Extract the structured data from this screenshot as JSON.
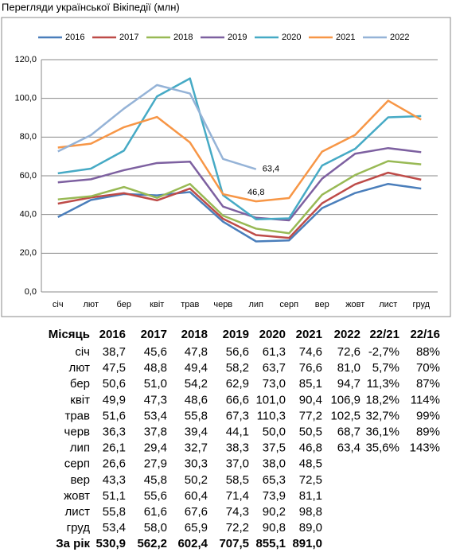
{
  "chart_data": {
    "type": "line",
    "title": "Перегляди української Вікіпедії (млн)",
    "categories": [
      "січ",
      "лют",
      "бер",
      "квіт",
      "трав",
      "черв",
      "лип",
      "серп",
      "вер",
      "жовт",
      "лист",
      "груд"
    ],
    "series": [
      {
        "name": "2016",
        "color": "#4a7ebb",
        "values": [
          38.7,
          47.5,
          50.6,
          49.9,
          51.6,
          36.3,
          26.1,
          26.6,
          43.3,
          51.1,
          55.8,
          53.4
        ]
      },
      {
        "name": "2017",
        "color": "#be4b48",
        "values": [
          45.6,
          48.8,
          51.0,
          47.3,
          53.4,
          37.8,
          29.4,
          27.9,
          45.8,
          55.6,
          61.6,
          58.0
        ]
      },
      {
        "name": "2018",
        "color": "#98b954",
        "values": [
          47.8,
          49.4,
          54.2,
          48.6,
          55.8,
          39.4,
          32.7,
          30.3,
          50.2,
          60.4,
          67.6,
          65.9
        ]
      },
      {
        "name": "2019",
        "color": "#7d60a0",
        "values": [
          56.6,
          58.2,
          62.9,
          66.6,
          67.3,
          44.1,
          38.3,
          37.0,
          58.5,
          71.4,
          74.3,
          72.2
        ]
      },
      {
        "name": "2020",
        "color": "#46aac5",
        "values": [
          61.3,
          63.7,
          73.0,
          101.0,
          110.3,
          50.0,
          37.5,
          38.0,
          65.3,
          73.9,
          90.2,
          90.8
        ]
      },
      {
        "name": "2021",
        "color": "#f79646",
        "values": [
          74.6,
          76.6,
          85.1,
          90.4,
          77.2,
          50.5,
          46.8,
          48.5,
          72.5,
          81.1,
          98.8,
          89.0
        ],
        "value_labels": [
          null,
          null,
          null,
          null,
          null,
          null,
          "46,8",
          null,
          null,
          null,
          null,
          null
        ]
      },
      {
        "name": "2022",
        "color": "#95b3d7",
        "values": [
          72.6,
          81.0,
          94.7,
          106.9,
          102.5,
          68.7,
          63.4,
          null,
          null,
          null,
          null,
          null
        ],
        "value_labels": [
          null,
          null,
          null,
          null,
          null,
          null,
          "63,4",
          null,
          null,
          null,
          null,
          null
        ]
      }
    ],
    "ylim": [
      0,
      120
    ],
    "yticks": [
      {
        "value": 0,
        "label": "0,0"
      },
      {
        "value": 20,
        "label": "20,0"
      },
      {
        "value": 40,
        "label": "40,0"
      },
      {
        "value": 60,
        "label": "60,0"
      },
      {
        "value": 80,
        "label": "80,0"
      },
      {
        "value": 100,
        "label": "100,0"
      },
      {
        "value": 120,
        "label": "120,0"
      }
    ],
    "grid": true,
    "legend": "top"
  },
  "table": {
    "header": [
      "Місяць",
      "2016",
      "2017",
      "2018",
      "2019",
      "2020",
      "2021",
      "2022",
      "22/21",
      "22/16"
    ],
    "rows": [
      [
        "січ",
        "38,7",
        "45,6",
        "47,8",
        "56,6",
        "61,3",
        "74,6",
        "72,6",
        "-2,7%",
        "88%"
      ],
      [
        "лют",
        "47,5",
        "48,8",
        "49,4",
        "58,2",
        "63,7",
        "76,6",
        "81,0",
        "5,7%",
        "70%"
      ],
      [
        "бер",
        "50,6",
        "51,0",
        "54,2",
        "62,9",
        "73,0",
        "85,1",
        "94,7",
        "11,3%",
        "87%"
      ],
      [
        "квіт",
        "49,9",
        "47,3",
        "48,6",
        "66,6",
        "101,0",
        "90,4",
        "106,9",
        "18,2%",
        "114%"
      ],
      [
        "трав",
        "51,6",
        "53,4",
        "55,8",
        "67,3",
        "110,3",
        "77,2",
        "102,5",
        "32,7%",
        "99%"
      ],
      [
        "черв",
        "36,3",
        "37,8",
        "39,4",
        "44,1",
        "50,0",
        "50,5",
        "68,7",
        "36,1%",
        "89%"
      ],
      [
        "лип",
        "26,1",
        "29,4",
        "32,7",
        "38,3",
        "37,5",
        "46,8",
        "63,4",
        "35,6%",
        "143%"
      ],
      [
        "серп",
        "26,6",
        "27,9",
        "30,3",
        "37,0",
        "38,0",
        "48,5"
      ],
      [
        "вер",
        "43,3",
        "45,8",
        "50,2",
        "58,5",
        "65,3",
        "72,5"
      ],
      [
        "жовт",
        "51,1",
        "55,6",
        "60,4",
        "71,4",
        "73,9",
        "81,1"
      ],
      [
        "лист",
        "55,8",
        "61,6",
        "67,6",
        "74,3",
        "90,2",
        "98,8"
      ],
      [
        "груд",
        "53,4",
        "58,0",
        "65,9",
        "72,2",
        "90,8",
        "89,0"
      ],
      [
        "За рік",
        "530,9",
        "562,2",
        "602,4",
        "707,5",
        "855,1",
        "891,0"
      ]
    ]
  }
}
